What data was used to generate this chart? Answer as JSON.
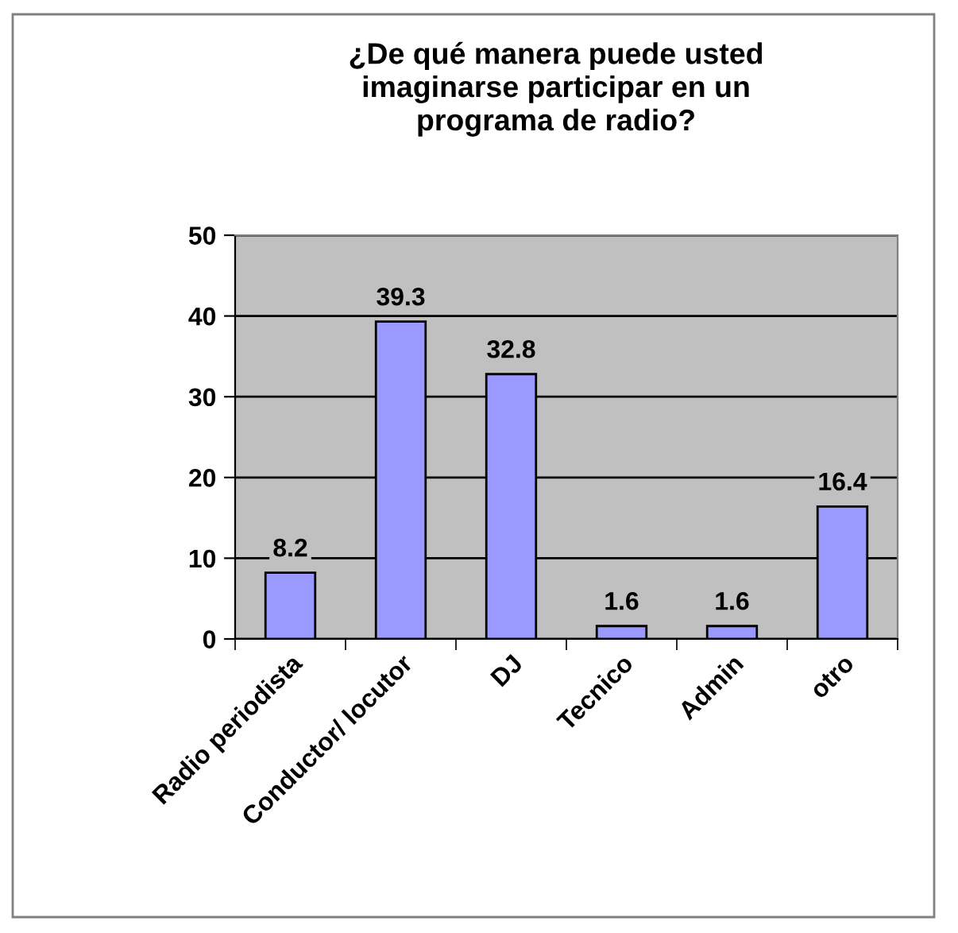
{
  "chart_data": {
    "type": "bar",
    "title": "¿De qué manera puede usted imaginarse participar en un programa de radio?",
    "categories": [
      "Radio periodista",
      "Conductor/ locutor",
      "DJ",
      "Tecnico",
      "Admin",
      "otro"
    ],
    "values": [
      8.2,
      39.3,
      32.8,
      1.6,
      1.6,
      16.4
    ],
    "color": "#9999ff",
    "ylim": [
      0,
      50
    ],
    "yticks": [
      0,
      10,
      20,
      30,
      40,
      50
    ],
    "grid": "y",
    "data_labels": true,
    "legend": false
  }
}
